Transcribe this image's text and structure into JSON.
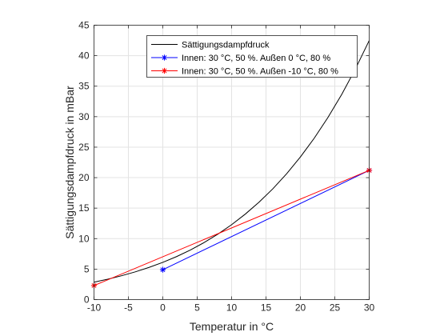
{
  "chart_data": {
    "type": "line",
    "xlabel": "Temperatur in °C",
    "ylabel": "Sättigungsdampfdruck in mBar",
    "xlim": [
      -10,
      30
    ],
    "ylim": [
      0,
      45
    ],
    "xticks": [
      -10,
      -5,
      0,
      5,
      10,
      15,
      20,
      25,
      30
    ],
    "yticks": [
      0,
      5,
      10,
      15,
      20,
      25,
      30,
      35,
      40,
      45
    ],
    "grid": true,
    "legend_position": "top-right",
    "series": [
      {
        "name": "Sättigungsdampfdruck",
        "color": "#000000",
        "marker": "none",
        "x": [
          -10,
          -8,
          -6,
          -4,
          -2,
          0,
          2,
          4,
          6,
          8,
          10,
          12,
          14,
          16,
          18,
          20,
          22,
          24,
          26,
          28,
          30
        ],
        "y": [
          2.86,
          3.35,
          3.91,
          4.55,
          5.28,
          6.11,
          7.05,
          8.13,
          9.35,
          10.73,
          12.28,
          14.03,
          15.99,
          18.18,
          20.64,
          23.39,
          26.45,
          29.86,
          33.64,
          37.84,
          42.48
        ]
      },
      {
        "name": "Innen: 30 °C, 50 %. Außen 0 °C, 80 %",
        "color": "#0000ff",
        "marker": "*",
        "x": [
          0,
          30
        ],
        "y": [
          4.9,
          21.2
        ]
      },
      {
        "name": "Innen: 30 °C, 50 %. Außen -10 °C, 80 %",
        "color": "#ff0000",
        "marker": "*",
        "x": [
          -10,
          30
        ],
        "y": [
          2.3,
          21.2
        ]
      }
    ]
  }
}
